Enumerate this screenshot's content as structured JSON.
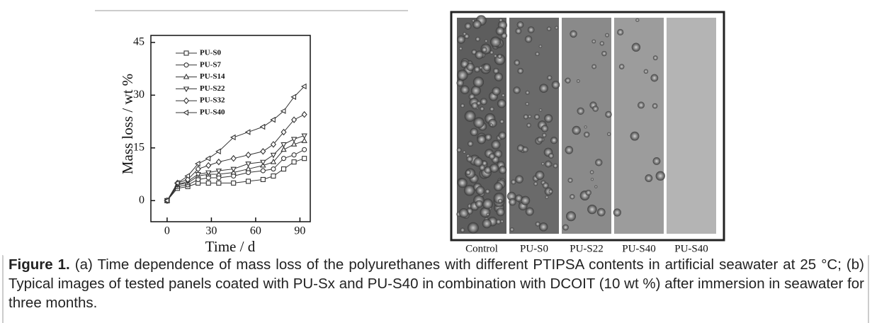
{
  "chart_data": {
    "type": "line",
    "x_label": "Time / d",
    "y_label": "Mass loss / wt %",
    "x": [
      0,
      7,
      14,
      21,
      28,
      35,
      45,
      55,
      65,
      72,
      79,
      86,
      93
    ],
    "xlim": [
      -11,
      97
    ],
    "xticks": [
      0,
      30,
      60,
      90
    ],
    "ylim": [
      -6,
      47
    ],
    "yticks": [
      0,
      15,
      30,
      45
    ],
    "color": "#333333",
    "series": [
      {
        "name": "PU-S0",
        "marker": "square",
        "values": [
          0,
          3.5,
          4,
          5,
          5,
          5,
          5,
          5.5,
          6,
          7,
          9,
          11,
          12
        ]
      },
      {
        "name": "PU-S7",
        "marker": "circle",
        "values": [
          0,
          4,
          4.5,
          6,
          6.5,
          6.5,
          7,
          8,
          8.5,
          9,
          12,
          13,
          14.5
        ]
      },
      {
        "name": "PU-S14",
        "marker": "triangle-up",
        "values": [
          0,
          4.5,
          5,
          7,
          7.5,
          7.5,
          8,
          9,
          10,
          11,
          14.5,
          16,
          17
        ]
      },
      {
        "name": "PU-S22",
        "marker": "triangle-down",
        "values": [
          0,
          4.5,
          5.5,
          7.5,
          8,
          8.5,
          9,
          10.5,
          11,
          13,
          16,
          17.5,
          18.5
        ]
      },
      {
        "name": "PU-S32",
        "marker": "diamond",
        "values": [
          0,
          5,
          6,
          9,
          10,
          11,
          12,
          13,
          14,
          16,
          19.5,
          23,
          24.5
        ]
      },
      {
        "name": "PU-S40",
        "marker": "triangle-left",
        "values": [
          0,
          5,
          7,
          10.5,
          12,
          14,
          18,
          19.5,
          21,
          23,
          25.5,
          29.5,
          32.5
        ]
      }
    ]
  },
  "panels": {
    "labels": [
      "Control",
      "PU-S0",
      "PU-S22",
      "PU-S40",
      "PU-S40"
    ]
  },
  "caption": {
    "label": "Figure 1.",
    "text": "(a) Time dependence of mass loss of the polyurethanes with different PTIPSA contents in artificial seawater at 25 °C; (b) Typical images of tested panels coated with PU-Sx and PU-S40 in combination with DCOIT (10 wt %) after immersion in seawater for three months."
  }
}
